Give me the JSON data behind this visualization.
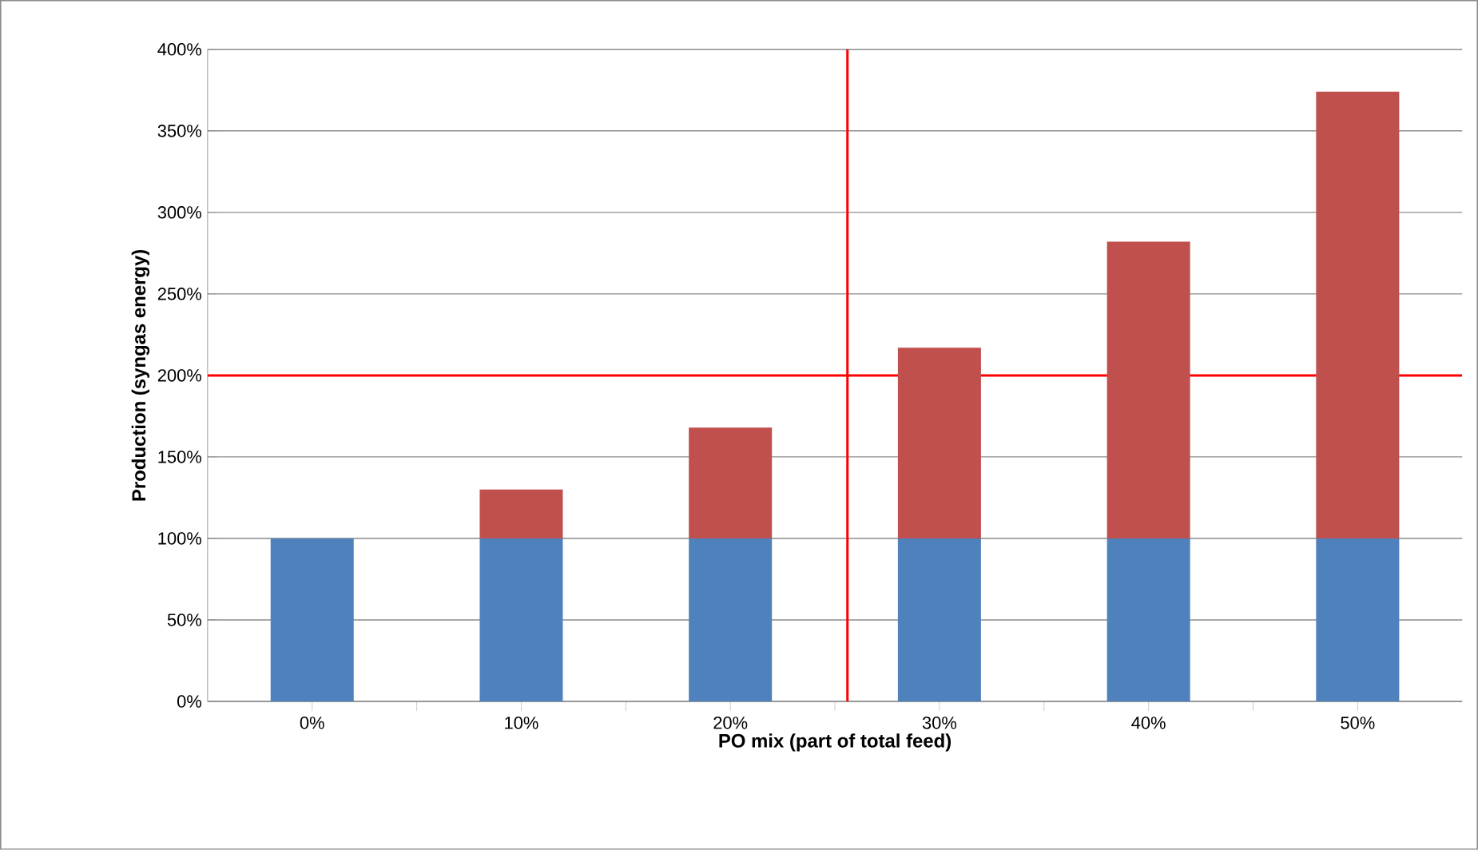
{
  "chart_data": {
    "type": "bar",
    "stacked": true,
    "xlabel": "PO mix (part of total feed)",
    "ylabel": "Production (syngas energy)",
    "x": [
      0,
      10,
      20,
      30,
      40,
      50
    ],
    "series": [
      {
        "color": "#4f81bd",
        "values": [
          100,
          100,
          100,
          100,
          100,
          100
        ]
      },
      {
        "color": "#c0504d",
        "values": [
          0,
          30,
          68,
          117,
          182,
          274
        ]
      }
    ],
    "xlim": [
      -5,
      55
    ],
    "xticks": [
      {
        "value": 0,
        "label": "0%"
      },
      {
        "value": 5,
        "label": null
      },
      {
        "value": 10,
        "label": "10%"
      },
      {
        "value": 15,
        "label": null
      },
      {
        "value": 20,
        "label": "20%"
      },
      {
        "value": 25,
        "label": null
      },
      {
        "value": 30,
        "label": "30%"
      },
      {
        "value": 35,
        "label": null
      },
      {
        "value": 40,
        "label": "40%"
      },
      {
        "value": 45,
        "label": null
      },
      {
        "value": 50,
        "label": "50%"
      }
    ],
    "ylim": [
      0,
      400
    ],
    "yticks": [
      {
        "value": 0,
        "label": "0%"
      },
      {
        "value": 50,
        "label": "50%"
      },
      {
        "value": 100,
        "label": "100%"
      },
      {
        "value": 150,
        "label": "150%"
      },
      {
        "value": 200,
        "label": "200%"
      },
      {
        "value": 250,
        "label": "250%"
      },
      {
        "value": 300,
        "label": "300%"
      },
      {
        "value": 350,
        "label": "350%"
      },
      {
        "value": 400,
        "label": "400%"
      }
    ],
    "grid": "y",
    "ref_lines": [
      {
        "axis": "y",
        "value": 200,
        "color": "#ff0000"
      },
      {
        "axis": "x",
        "value": 25.6,
        "color": "#ff0000"
      }
    ]
  }
}
